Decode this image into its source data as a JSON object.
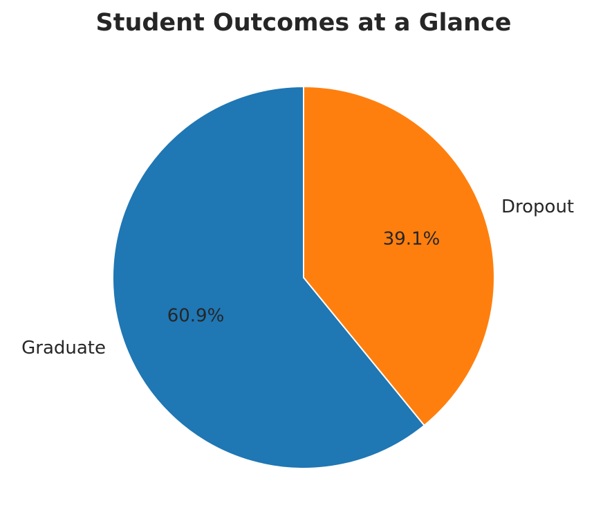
{
  "chart_data": {
    "type": "pie",
    "title": "Student Outcomes at a Glance",
    "categories": [
      "Graduate",
      "Dropout"
    ],
    "values": [
      60.9,
      39.1
    ],
    "value_labels": [
      "60.9%",
      "39.1%"
    ],
    "colors": [
      "#1f77b4",
      "#ff7f0e"
    ],
    "edge_color": "#ffffff",
    "start_angle_deg": 90,
    "direction": "counterclockwise",
    "legend": "none"
  }
}
